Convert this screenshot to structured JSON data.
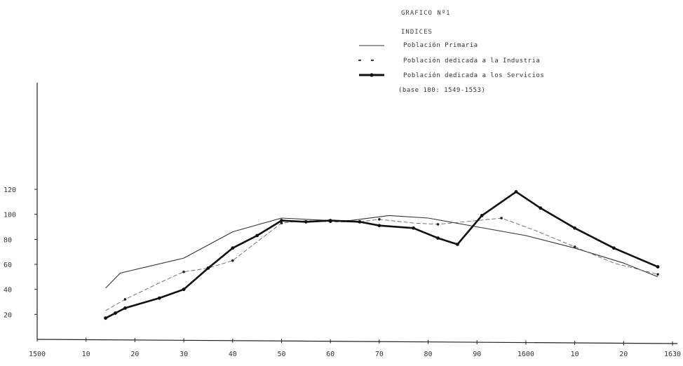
{
  "chart_data": {
    "type": "line",
    "title": "GRAFICO Nº1",
    "legend_title": "INDICES",
    "note": "(base 100: 1549-1553)",
    "legend_placement": "top-right",
    "grid": false,
    "x_ticks": [
      1500,
      1510,
      1520,
      1530,
      1540,
      1550,
      1560,
      1570,
      1580,
      1590,
      1600,
      1610,
      1620,
      1630
    ],
    "x_tick_labels": [
      "1500",
      "10",
      "20",
      "30",
      "40",
      "50",
      "60",
      "70",
      "80",
      "90",
      "1600",
      "10",
      "20",
      "1630"
    ],
    "y_ticks": [
      20,
      40,
      60,
      80,
      100,
      120
    ],
    "y_tick_labels": [
      "20",
      "40",
      "60",
      "80",
      "100",
      "120"
    ],
    "xlim": [
      1500,
      1630
    ],
    "ylim": [
      0,
      120
    ],
    "series": [
      {
        "name": "Población Primaria",
        "style": "thin",
        "x": [
          1514,
          1517,
          1530,
          1540,
          1550,
          1560,
          1564,
          1572,
          1580,
          1590,
          1600,
          1610,
          1620,
          1627
        ],
        "y": [
          41,
          53,
          65,
          86,
          97,
          95,
          95,
          99,
          97,
          90,
          83,
          73,
          61,
          50
        ]
      },
      {
        "name": "Población dedicada a la Industria",
        "style": "dashed",
        "x": [
          1514,
          1518,
          1526,
          1530,
          1535,
          1540,
          1545,
          1550,
          1555,
          1560,
          1566,
          1570,
          1577,
          1582,
          1590,
          1595,
          1602,
          1610,
          1618,
          1627
        ],
        "y": [
          23,
          32,
          47,
          54,
          57,
          63,
          78,
          93,
          95,
          94,
          94,
          96,
          93,
          92,
          95,
          97,
          87,
          74,
          61,
          52
        ]
      },
      {
        "name": "Población dedicada a los Servicios",
        "style": "thick",
        "x": [
          1514,
          1516,
          1518,
          1525,
          1530,
          1535,
          1540,
          1545,
          1550,
          1555,
          1560,
          1566,
          1570,
          1577,
          1582,
          1586,
          1591,
          1598,
          1603,
          1610,
          1618,
          1627
        ],
        "y": [
          17,
          21,
          25,
          33,
          40,
          57,
          73,
          83,
          95,
          94,
          95,
          94,
          91,
          89,
          81,
          76,
          99,
          118,
          105,
          89,
          73,
          58
        ]
      }
    ]
  }
}
